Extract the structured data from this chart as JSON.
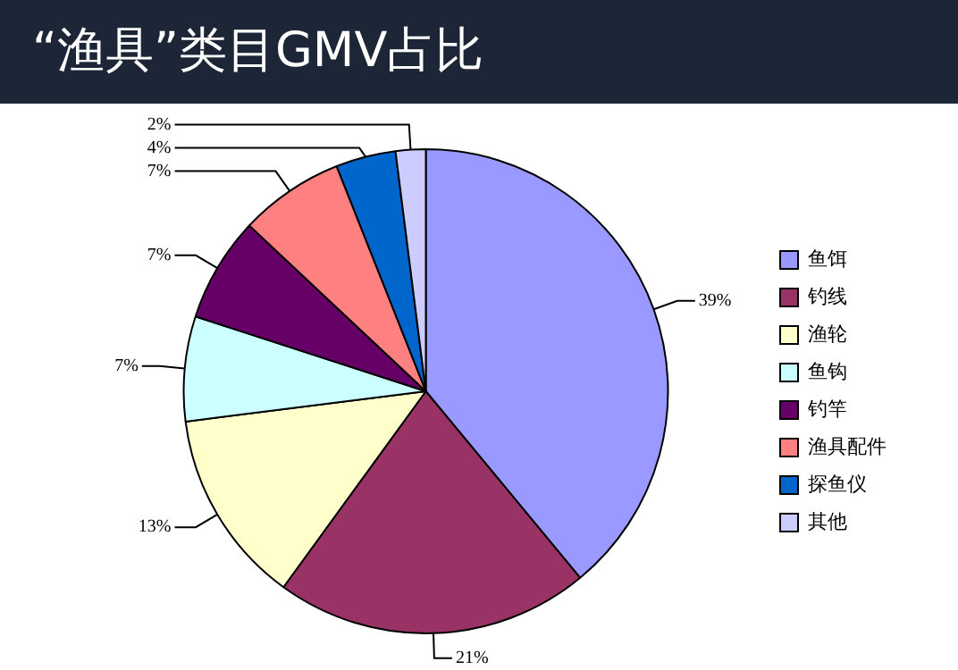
{
  "chart_data": {
    "type": "pie",
    "title": "“渔具”类目GMV占比",
    "categories": [
      "鱼饵",
      "钓线",
      "渔轮",
      "鱼钩",
      "钓竿",
      "渔具配件",
      "探鱼仪",
      "其他"
    ],
    "values": [
      39,
      21,
      13,
      7,
      7,
      7,
      4,
      2
    ],
    "value_labels": [
      "39%",
      "21%",
      "13%",
      "7%",
      "7%",
      "7%",
      "4%",
      "2%"
    ],
    "colors": [
      "#9999ff",
      "#993366",
      "#ffffcc",
      "#ccffff",
      "#660066",
      "#ff8080",
      "#0066cc",
      "#ccccff"
    ],
    "legend": "right"
  }
}
